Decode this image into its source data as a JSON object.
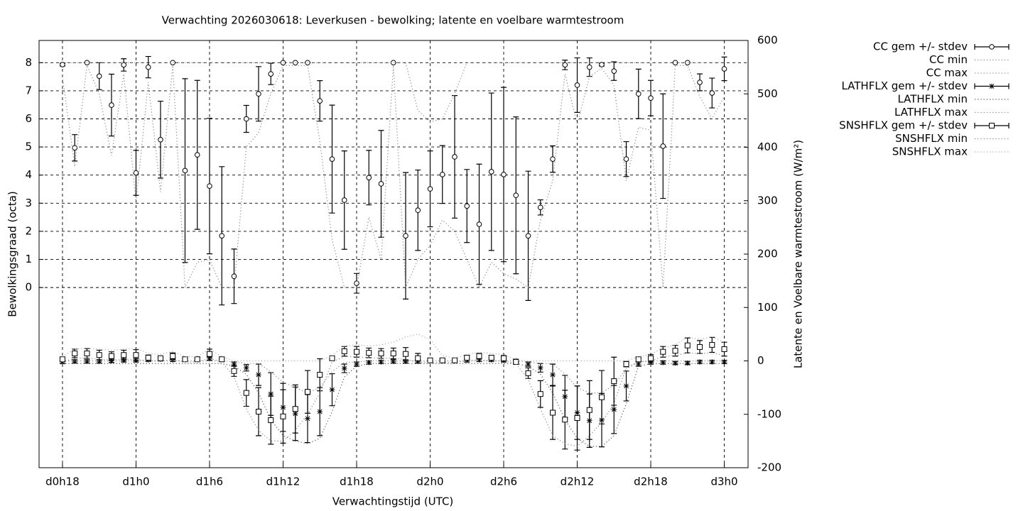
{
  "chart_data": {
    "type": "errorbar-line",
    "title": "Verwachting 2026030618: Leverkusen - bewolking; latente en voelbare warmtestroom",
    "xlabel": "Verwachtingstijd (UTC)",
    "ylabel": "Bewolkingsgraad (octa)",
    "y2label": "Latente en Voelbare warmtestroom (W/m²)",
    "x": [
      18,
      19,
      20,
      21,
      22,
      23,
      24,
      25,
      26,
      27,
      28,
      29,
      30,
      31,
      32,
      33,
      34,
      35,
      36,
      37,
      38,
      39,
      40,
      41,
      42,
      43,
      44,
      45,
      46,
      47,
      48,
      49,
      50,
      51,
      52,
      53,
      54,
      55,
      56,
      57,
      58,
      59,
      60,
      61,
      62,
      63,
      64,
      65,
      66,
      67,
      68,
      69,
      70,
      71,
      72
    ],
    "xlim": [
      16.09,
      73.94
    ],
    "xticks": [
      {
        "value": 18,
        "label": "d0h18"
      },
      {
        "value": 24,
        "label": "d1h0"
      },
      {
        "value": 30,
        "label": "d1h6"
      },
      {
        "value": 36,
        "label": "d1h12"
      },
      {
        "value": 42,
        "label": "d1h18"
      },
      {
        "value": 48,
        "label": "d2h0"
      },
      {
        "value": 54,
        "label": "d2h6"
      },
      {
        "value": 60,
        "label": "d2h12"
      },
      {
        "value": 66,
        "label": "d2h18"
      },
      {
        "value": 72,
        "label": "d3h0"
      }
    ],
    "ylim": [
      -6.41,
      8.79
    ],
    "yticks": [
      0,
      1,
      2,
      3,
      4,
      5,
      6,
      7,
      8
    ],
    "y2lim": [
      -200,
      600
    ],
    "y2ticks": [
      -200,
      -100,
      0,
      100,
      200,
      300,
      400,
      500,
      600
    ],
    "grid": true,
    "legend": "outside-right",
    "series": [
      {
        "name": "CC gem +/- stdev",
        "axis": "y",
        "style": "errorbar",
        "marker": "circle",
        "color": "#000000",
        "values": [
          7.93,
          4.97,
          8.0,
          7.52,
          6.49,
          7.92,
          4.08,
          7.84,
          5.26,
          8.0,
          4.16,
          4.72,
          3.61,
          1.84,
          0.4,
          6.0,
          6.89,
          7.6,
          8.0,
          8.0,
          8.0,
          6.64,
          4.57,
          3.11,
          0.15,
          3.91,
          3.69,
          8.0,
          1.84,
          2.75,
          3.51,
          4.02,
          4.65,
          2.9,
          2.25,
          4.12,
          4.02,
          3.28,
          1.84,
          2.85,
          4.57,
          7.92,
          7.2,
          7.84,
          7.93,
          7.7,
          4.57,
          6.89,
          6.74,
          5.03,
          8.0,
          8.0,
          7.3,
          6.92,
          7.78
        ],
        "errors": [
          0.05,
          0.47,
          0,
          0.48,
          1.1,
          0.22,
          0.8,
          0.38,
          1.37,
          0,
          3.27,
          2.65,
          2.41,
          2.46,
          0.97,
          0.48,
          0.97,
          0.38,
          0,
          0,
          0,
          0.72,
          1.92,
          1.75,
          0.35,
          0.97,
          1.9,
          0,
          2.25,
          1.43,
          1.35,
          1.03,
          2.18,
          1.3,
          2.14,
          2.8,
          3.1,
          2.79,
          2.3,
          0.27,
          0.47,
          0.17,
          0.97,
          0.33,
          0.05,
          0.33,
          0.62,
          0.88,
          0.63,
          1.86,
          0,
          0,
          0.3,
          0.53,
          0.42
        ]
      },
      {
        "name": "CC min",
        "axis": "y",
        "style": "dotted",
        "color": "#888888",
        "values": [
          7.5,
          4.3,
          7.9,
          6.9,
          4.7,
          7.6,
          3.0,
          7.3,
          3.4,
          7.9,
          0,
          0.9,
          1.0,
          0,
          0,
          5.0,
          5.5,
          6.9,
          7.9,
          7.9,
          7.9,
          5.2,
          1.7,
          0,
          0,
          2.5,
          1.0,
          7.9,
          0,
          1.0,
          1.5,
          2.4,
          2.0,
          1.0,
          0,
          0.9,
          0.5,
          0.3,
          0,
          2.4,
          3.8,
          7.6,
          5.8,
          7.5,
          7.8,
          7.2,
          3.8,
          5.7,
          5.6,
          0,
          7.9,
          7.9,
          6.8,
          6.0,
          6.8
        ]
      },
      {
        "name": "CC max",
        "axis": "y",
        "style": "dotted",
        "color": "#888888",
        "values": [
          8,
          8,
          8,
          8,
          8,
          8,
          8,
          8,
          8,
          8,
          8,
          8,
          8,
          8,
          8,
          8,
          8,
          8,
          8,
          8,
          8,
          8,
          8,
          8,
          8,
          8,
          8,
          8,
          8,
          6.3,
          5.9,
          6.0,
          6.9,
          8,
          8,
          8,
          8,
          8,
          8,
          8,
          8,
          8,
          8,
          8,
          8,
          8,
          8,
          8,
          8,
          8,
          8,
          8,
          8,
          8,
          8
        ]
      },
      {
        "name": "LATHFLX gem +/- stdev",
        "axis": "y2",
        "style": "errorbar",
        "marker": "star",
        "color": "#000000",
        "values": [
          -2,
          -1,
          -1,
          -1,
          0,
          1,
          1,
          2,
          3,
          2,
          3,
          4,
          4,
          2,
          -6,
          -13,
          -26,
          -62,
          -87,
          -99,
          -108,
          -95,
          -54,
          -14,
          -6,
          -3,
          -2,
          -1,
          -1,
          -1,
          0,
          0,
          0,
          1,
          2,
          2,
          1,
          0,
          -6,
          -13,
          -26,
          -67,
          -97,
          -112,
          -111,
          -91,
          -47,
          -6,
          -3,
          -3,
          -4,
          -4,
          -2,
          -2,
          -2
        ],
        "errors": [
          3,
          3,
          3,
          3,
          3,
          3,
          3,
          3,
          3,
          3,
          3,
          3,
          3,
          3,
          4,
          6,
          20,
          40,
          45,
          50,
          45,
          45,
          30,
          8,
          4,
          3,
          3,
          3,
          3,
          3,
          3,
          3,
          3,
          3,
          3,
          3,
          3,
          3,
          4,
          8,
          20,
          40,
          50,
          50,
          50,
          45,
          28,
          4,
          3,
          3,
          3,
          3,
          3,
          3,
          3
        ]
      },
      {
        "name": "LATHFLX min",
        "axis": "y2",
        "style": "dotted",
        "color": "#555555",
        "values": [
          -5,
          -5,
          -5,
          -5,
          -5,
          -5,
          -5,
          -5,
          -5,
          -5,
          -5,
          -5,
          -5,
          -5,
          -10,
          -25,
          -60,
          -110,
          -140,
          -150,
          -155,
          -145,
          -95,
          -30,
          -10,
          -5,
          -5,
          -5,
          -5,
          -5,
          -5,
          -5,
          -5,
          -5,
          -5,
          -5,
          -5,
          -5,
          -10,
          -25,
          -60,
          -110,
          -145,
          -160,
          -160,
          -140,
          -80,
          -10,
          -5,
          -5,
          -5,
          -5,
          -5,
          -5,
          -5
        ]
      },
      {
        "name": "LATHFLX max",
        "axis": "y2",
        "style": "dotted",
        "color": "#888888",
        "values": [
          0,
          0,
          0,
          0,
          0,
          0,
          0,
          0,
          0,
          0,
          0,
          0,
          0,
          0,
          -2,
          -5,
          -5,
          -20,
          -40,
          -50,
          -60,
          -50,
          -20,
          -3,
          -2,
          0,
          0,
          0,
          0,
          0,
          0,
          0,
          0,
          0,
          0,
          0,
          0,
          0,
          -2,
          -5,
          -5,
          -25,
          -50,
          -60,
          -60,
          -45,
          -15,
          -2,
          0,
          0,
          0,
          0,
          0,
          0,
          0
        ]
      },
      {
        "name": "SNSHFLX gem +/- stdev",
        "axis": "y2",
        "style": "errorbar",
        "marker": "square",
        "color": "#000000",
        "values": [
          3,
          14,
          14,
          11,
          9,
          11,
          11,
          6,
          5,
          9,
          3,
          3,
          13,
          3,
          -19,
          -60,
          -95,
          -111,
          -104,
          -90,
          -58,
          -26,
          5,
          18,
          17,
          15,
          14,
          14,
          13,
          5,
          1,
          1,
          1,
          6,
          9,
          6,
          5,
          -2,
          -23,
          -62,
          -97,
          -110,
          -107,
          -92,
          -68,
          -38,
          -6,
          3,
          5,
          17,
          19,
          29,
          26,
          30,
          22
        ],
        "errors": [
          4,
          8,
          9,
          9,
          8,
          9,
          10,
          5,
          4,
          6,
          3,
          3,
          9,
          4,
          10,
          25,
          45,
          45,
          50,
          45,
          40,
          30,
          4,
          9,
          10,
          9,
          9,
          10,
          12,
          9,
          3,
          3,
          3,
          4,
          5,
          4,
          5,
          3,
          10,
          25,
          50,
          55,
          60,
          55,
          50,
          45,
          5,
          4,
          7,
          10,
          10,
          14,
          12,
          14,
          13
        ]
      },
      {
        "name": "SNSHFLX min",
        "axis": "y2",
        "style": "dotted",
        "color": "#888888",
        "values": [
          -2,
          5,
          5,
          3,
          2,
          3,
          3,
          0,
          0,
          2,
          -2,
          -2,
          5,
          -2,
          -30,
          -90,
          -130,
          -150,
          -150,
          -130,
          -100,
          -60,
          -2,
          8,
          8,
          6,
          5,
          5,
          3,
          -2,
          -3,
          -3,
          -3,
          0,
          2,
          0,
          0,
          -5,
          -35,
          -90,
          -140,
          -155,
          -160,
          -140,
          -115,
          -80,
          -12,
          -2,
          0,
          8,
          10,
          15,
          14,
          15,
          10
        ]
      },
      {
        "name": "SNSHFLX max",
        "axis": "y2",
        "style": "dotted",
        "color": "#aaaaaa",
        "values": [
          8,
          22,
          24,
          22,
          20,
          22,
          24,
          14,
          12,
          18,
          8,
          8,
          22,
          8,
          0,
          0,
          0,
          0,
          0,
          0,
          0,
          0,
          10,
          28,
          30,
          28,
          30,
          35,
          45,
          50,
          40,
          10,
          5,
          12,
          16,
          14,
          12,
          2,
          0,
          0,
          0,
          0,
          0,
          0,
          0,
          0,
          0,
          8,
          12,
          25,
          30,
          45,
          40,
          45,
          35
        ]
      }
    ]
  }
}
